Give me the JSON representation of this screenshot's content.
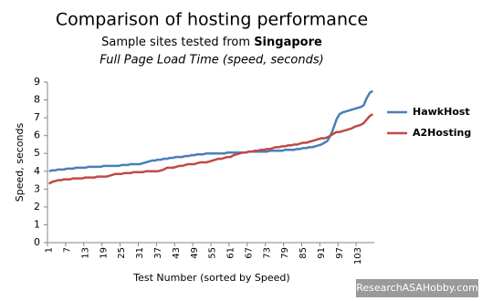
{
  "chart_data": {
    "type": "line",
    "title": "Comparison of hosting performance",
    "subtitle": "Sample sites tested from",
    "subtitle_location": "Singapore",
    "subtitle2": "Full Page Load Time (speed, seconds)",
    "x_label": "Test Number (sorted by Speed)",
    "y_label": "Speed, seconds",
    "watermark": "ResearchASAHobby.com",
    "legend": "right",
    "categories": [
      "1",
      null,
      null,
      null,
      null,
      null,
      "7",
      null,
      null,
      null,
      null,
      null,
      "13",
      null,
      null,
      null,
      null,
      null,
      "19",
      null,
      null,
      null,
      null,
      null,
      "25",
      null,
      null,
      null,
      null,
      null,
      "31",
      null,
      null,
      null,
      null,
      null,
      "37",
      null,
      null,
      null,
      null,
      null,
      "43",
      null,
      null,
      null,
      null,
      null,
      "49",
      null,
      null,
      null,
      null,
      null,
      "55",
      null,
      null,
      null,
      null,
      null,
      "61",
      null,
      null,
      null,
      null,
      null,
      "67",
      null,
      null,
      null,
      null,
      null,
      "73",
      null,
      null,
      null,
      null,
      null,
      "79",
      null,
      null,
      null,
      null,
      null,
      "85",
      null,
      null,
      null,
      null,
      null,
      "91",
      null,
      null,
      null,
      null,
      null,
      "97",
      null,
      null,
      null,
      null,
      null,
      "103",
      null,
      null,
      null,
      null,
      null
    ],
    "series": [
      {
        "name": "HawkHost",
        "color": "#4a7ebb",
        "values": [
          4.0,
          4.05,
          4.05,
          4.1,
          4.1,
          4.1,
          4.15,
          4.15,
          4.15,
          4.2,
          4.2,
          4.2,
          4.2,
          4.25,
          4.25,
          4.25,
          4.25,
          4.25,
          4.3,
          4.3,
          4.3,
          4.3,
          4.3,
          4.3,
          4.35,
          4.35,
          4.35,
          4.4,
          4.4,
          4.4,
          4.4,
          4.45,
          4.5,
          4.55,
          4.6,
          4.6,
          4.65,
          4.65,
          4.7,
          4.7,
          4.75,
          4.75,
          4.8,
          4.8,
          4.8,
          4.85,
          4.85,
          4.9,
          4.9,
          4.95,
          4.95,
          4.95,
          5.0,
          5.0,
          5.0,
          5.0,
          5.0,
          5.0,
          5.0,
          5.05,
          5.05,
          5.05,
          5.05,
          5.05,
          5.05,
          5.05,
          5.1,
          5.1,
          5.1,
          5.1,
          5.1,
          5.1,
          5.1,
          5.15,
          5.15,
          5.15,
          5.15,
          5.15,
          5.2,
          5.2,
          5.2,
          5.2,
          5.25,
          5.25,
          5.3,
          5.3,
          5.35,
          5.35,
          5.4,
          5.45,
          5.5,
          5.6,
          5.7,
          6.0,
          6.4,
          6.9,
          7.2,
          7.3,
          7.35,
          7.4,
          7.45,
          7.5,
          7.55,
          7.6,
          7.7,
          8.1,
          8.4,
          8.5
        ]
      },
      {
        "name": "A2Hosting",
        "color": "#be4b48",
        "values": [
          3.3,
          3.4,
          3.45,
          3.5,
          3.5,
          3.55,
          3.55,
          3.55,
          3.6,
          3.6,
          3.6,
          3.6,
          3.65,
          3.65,
          3.65,
          3.65,
          3.7,
          3.7,
          3.7,
          3.7,
          3.75,
          3.8,
          3.85,
          3.85,
          3.85,
          3.9,
          3.9,
          3.9,
          3.95,
          3.95,
          3.95,
          3.95,
          4.0,
          4.0,
          4.0,
          4.0,
          4.0,
          4.05,
          4.1,
          4.2,
          4.2,
          4.2,
          4.25,
          4.3,
          4.3,
          4.35,
          4.4,
          4.4,
          4.4,
          4.45,
          4.5,
          4.5,
          4.5,
          4.55,
          4.6,
          4.65,
          4.7,
          4.7,
          4.75,
          4.8,
          4.8,
          4.9,
          4.95,
          5.0,
          5.05,
          5.05,
          5.1,
          5.1,
          5.15,
          5.15,
          5.2,
          5.2,
          5.25,
          5.25,
          5.3,
          5.35,
          5.35,
          5.4,
          5.4,
          5.45,
          5.45,
          5.5,
          5.5,
          5.55,
          5.6,
          5.6,
          5.65,
          5.7,
          5.75,
          5.8,
          5.85,
          5.85,
          5.9,
          6.0,
          6.1,
          6.2,
          6.2,
          6.25,
          6.3,
          6.35,
          6.4,
          6.5,
          6.55,
          6.6,
          6.7,
          6.9,
          7.1,
          7.2
        ]
      }
    ],
    "ylim": [
      0,
      9
    ],
    "yticks": [
      0,
      1,
      2,
      3,
      4,
      5,
      6,
      7,
      8,
      9
    ]
  }
}
